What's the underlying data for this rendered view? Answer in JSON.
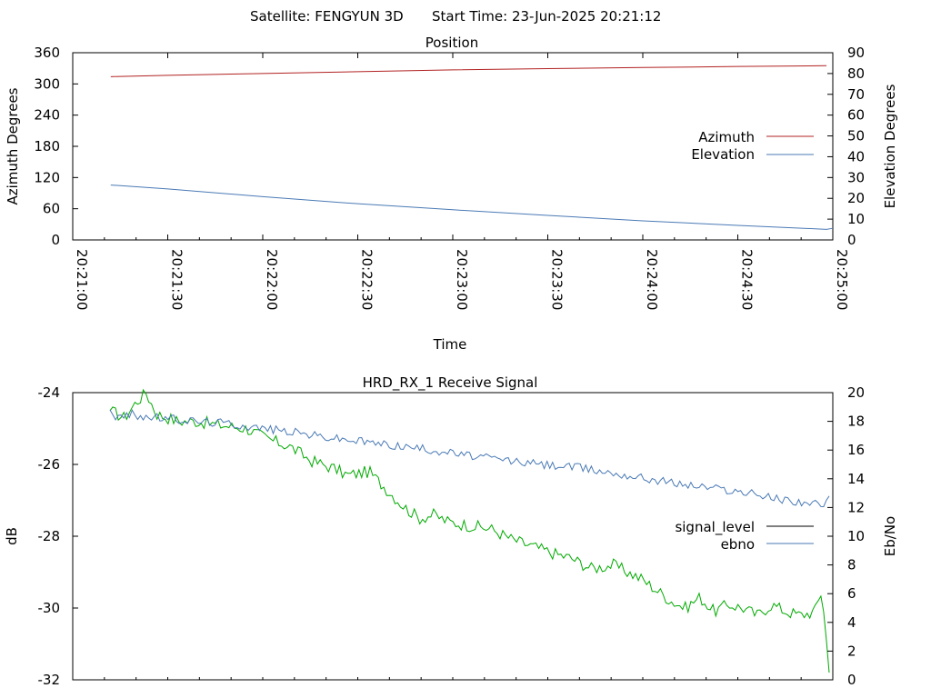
{
  "header": {
    "satellite": "Satellite: FENGYUN 3D",
    "start_time": "Start Time: 23-Jun-2025 20:21:12"
  },
  "chart_data": [
    {
      "type": "line",
      "title": "Position",
      "xlabel": "Time",
      "ylabel": "Azimuth Degrees",
      "y2label": "Elevation Degrees",
      "x_ticks": [
        "20:21:00",
        "20:21:30",
        "20:22:00",
        "20:22:30",
        "20:23:00",
        "20:23:30",
        "20:24:00",
        "20:24:30",
        "20:25:00"
      ],
      "xlim_seconds": [
        0,
        240
      ],
      "ylim": [
        0,
        360
      ],
      "y_ticks": [
        "0",
        "60",
        "120",
        "180",
        "240",
        "300",
        "360"
      ],
      "y2lim": [
        0,
        90
      ],
      "y2_ticks": [
        "0",
        "10",
        "20",
        "30",
        "40",
        "50",
        "60",
        "70",
        "80",
        "90"
      ],
      "legend_position": "right",
      "series": [
        {
          "name": "Azimuth",
          "axis": "left",
          "color": "#b22222",
          "x": [
            "20:21:12",
            "20:21:30",
            "20:22:00",
            "20:22:30",
            "20:23:00",
            "20:23:30",
            "20:24:00",
            "20:24:30",
            "20:24:58"
          ],
          "values": [
            314,
            316.5,
            320,
            323.5,
            327,
            329.5,
            331.5,
            333.5,
            335
          ]
        },
        {
          "name": "Elevation",
          "axis": "right",
          "color": "#4a7ab5",
          "x": [
            "20:21:12",
            "20:21:30",
            "20:22:00",
            "20:22:30",
            "20:23:00",
            "20:23:30",
            "20:24:00",
            "20:24:30",
            "20:24:58",
            "20:25:00"
          ],
          "values": [
            26.4,
            24.5,
            20.8,
            17.4,
            14.5,
            11.8,
            9.2,
            7.0,
            5.1,
            5.6
          ]
        }
      ]
    },
    {
      "type": "line",
      "title": "HRD_RX_1 Receive Signal",
      "ylabel": "dB",
      "y2label": "Eb/No",
      "ylim": [
        -32,
        -24
      ],
      "y_ticks": [
        "-32",
        "-30",
        "-28",
        "-26",
        "-24"
      ],
      "y2lim": [
        0,
        20
      ],
      "y2_ticks": [
        "0",
        "2",
        "4",
        "6",
        "8",
        "10",
        "12",
        "14",
        "16",
        "18",
        "20"
      ],
      "legend_position": "right",
      "series": [
        {
          "name": "signal_level",
          "axis": "left",
          "color": "#00aa00",
          "legend_color": "#000000",
          "x_fraction": [
            0.0,
            0.02,
            0.035,
            0.05,
            0.065,
            0.08,
            0.095,
            0.12,
            0.15,
            0.19,
            0.22,
            0.25,
            0.28,
            0.31,
            0.33,
            0.36,
            0.39,
            0.41,
            0.43,
            0.45,
            0.47,
            0.5,
            0.53,
            0.56,
            0.59,
            0.62,
            0.64,
            0.67,
            0.7,
            0.72,
            0.74,
            0.76,
            0.78,
            0.8,
            0.82,
            0.84,
            0.86,
            0.88,
            0.9,
            0.92,
            0.94,
            0.96,
            0.98,
            0.99,
            1.0
          ],
          "values": [
            -24.5,
            -24.7,
            -24.3,
            -24.0,
            -24.6,
            -24.7,
            -24.8,
            -24.8,
            -24.9,
            -25.0,
            -25.3,
            -25.5,
            -25.9,
            -26.1,
            -26.3,
            -26.2,
            -26.8,
            -27.2,
            -27.5,
            -27.4,
            -27.6,
            -27.7,
            -27.8,
            -28.1,
            -28.3,
            -28.5,
            -28.6,
            -28.9,
            -28.8,
            -29.0,
            -29.2,
            -29.5,
            -29.8,
            -30.0,
            -29.7,
            -30.1,
            -29.9,
            -30.0,
            -30.2,
            -29.9,
            -30.1,
            -30.2,
            -30.1,
            -29.5,
            -31.8
          ]
        },
        {
          "name": "ebno",
          "axis": "right",
          "color": "#4a7ab5",
          "x_fraction": [
            0.0,
            0.01,
            0.03,
            0.05,
            0.08,
            0.12,
            0.16,
            0.2,
            0.25,
            0.3,
            0.35,
            0.4,
            0.45,
            0.5,
            0.55,
            0.6,
            0.65,
            0.7,
            0.75,
            0.8,
            0.85,
            0.9,
            0.93,
            0.96,
            0.98,
            0.99,
            1.0
          ],
          "values": [
            18.8,
            18.2,
            18.5,
            18.3,
            18.2,
            18.0,
            17.9,
            17.6,
            17.3,
            16.9,
            16.6,
            16.3,
            16.0,
            15.6,
            15.3,
            15.0,
            14.8,
            14.4,
            14.0,
            13.6,
            13.3,
            12.9,
            12.6,
            12.4,
            12.3,
            11.8,
            12.8
          ]
        }
      ]
    }
  ]
}
